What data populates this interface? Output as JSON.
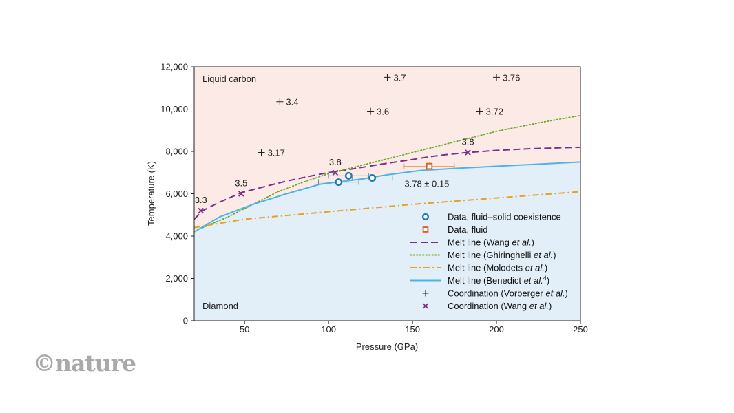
{
  "watermark": "©nature",
  "chart_data": {
    "type": "scatter",
    "title": "",
    "xlabel": "Pressure (GPa)",
    "ylabel": "Temperature (K)",
    "xlim": [
      20,
      250
    ],
    "ylim": [
      0,
      12000
    ],
    "xticks": [
      50,
      100,
      150,
      200,
      250
    ],
    "xtick_labels": [
      "50",
      "100",
      "150",
      "200",
      "250"
    ],
    "yticks": [
      0,
      2000,
      4000,
      6000,
      8000,
      10000,
      12000
    ],
    "ytick_labels": [
      "0",
      "2,000",
      "4,000",
      "6,000",
      "8,000",
      "10,000",
      "12,000"
    ],
    "grid": false,
    "legend_position": "lower-right",
    "regions": {
      "liquid_label": "Liquid carbon",
      "solid_label": "Diamond",
      "liquid_color": "#fbeae5",
      "solid_color": "#e3eff8"
    },
    "series": [
      {
        "name": "Data, fluid–solid coexistence",
        "kind": "points",
        "marker": "circle",
        "color": "#1f78b4",
        "points": [
          {
            "x": 106,
            "y": 6550,
            "xerr": 12,
            "yerr": 150
          },
          {
            "x": 112,
            "y": 6850,
            "xerr": 12,
            "yerr": 150
          },
          {
            "x": 126,
            "y": 6750,
            "xerr": 12,
            "yerr": 150
          }
        ]
      },
      {
        "name": "Data, fluid",
        "kind": "points",
        "marker": "square",
        "color": "#e05a1c",
        "points": [
          {
            "x": 160,
            "y": 7300,
            "xerr": 15,
            "yerr": 200
          }
        ]
      },
      {
        "name": "Melt line (Wang et al.)",
        "name_plain": "Melt line (Wang ",
        "name_italic": "et al.",
        "name_tail": ")",
        "kind": "line",
        "dash": "dashed",
        "color": "#7b2d8e",
        "x": [
          20,
          25,
          35,
          48,
          60,
          75,
          90,
          100,
          110,
          120,
          130,
          140,
          150,
          160,
          170,
          183,
          200,
          220,
          250
        ],
        "y": [
          4800,
          5200,
          5600,
          6050,
          6300,
          6600,
          6850,
          7000,
          7120,
          7250,
          7380,
          7500,
          7620,
          7750,
          7850,
          7950,
          8050,
          8130,
          8200
        ]
      },
      {
        "name": "Melt line (Ghiringhelli et al.)",
        "name_plain": "Melt line (Ghiringhelli ",
        "name_italic": "et al.",
        "name_tail": ")",
        "kind": "line",
        "dash": "dotted",
        "color": "#6aa820",
        "x": [
          25,
          40,
          55,
          70,
          85,
          100,
          120,
          140,
          160,
          180,
          200,
          225,
          250
        ],
        "y": [
          4400,
          4900,
          5500,
          6100,
          6550,
          6950,
          7350,
          7750,
          8150,
          8550,
          8950,
          9350,
          9700
        ]
      },
      {
        "name": "Melt line (Molodets et al.)",
        "name_plain": "Melt line (Molodets ",
        "name_italic": "et al.",
        "name_tail": ")",
        "kind": "line",
        "dash": "dashdot",
        "color": "#e8a020",
        "x": [
          20,
          50,
          100,
          150,
          200,
          250
        ],
        "y": [
          4400,
          4800,
          5150,
          5500,
          5800,
          6100
        ]
      },
      {
        "name": "Melt line (Benedict et al.4)",
        "name_plain": "Melt line (Benedict ",
        "name_italic": "et al.",
        "name_sup": "4",
        "name_tail": ")",
        "kind": "line",
        "dash": "solid",
        "color": "#4ab4e6",
        "x": [
          20,
          35,
          55,
          75,
          95,
          105,
          120,
          135,
          155,
          175,
          200,
          225,
          250
        ],
        "y": [
          4200,
          4900,
          5500,
          6000,
          6450,
          6550,
          6700,
          6900,
          7100,
          7200,
          7300,
          7400,
          7500
        ]
      },
      {
        "name": "Coordination (Vorberger et al.)",
        "name_plain": "Coordination (Vorberger ",
        "name_italic": "et al.",
        "name_tail": ")",
        "kind": "points",
        "marker": "plus",
        "color": "#222222",
        "points": [
          {
            "x": 60,
            "y": 7950,
            "label": "3.17"
          },
          {
            "x": 71,
            "y": 10350,
            "label": "3.4"
          },
          {
            "x": 125,
            "y": 9900,
            "label": "3.6"
          },
          {
            "x": 135,
            "y": 11500,
            "label": "3.7"
          },
          {
            "x": 190,
            "y": 9900,
            "label": "3.72"
          },
          {
            "x": 200,
            "y": 11500,
            "label": "3.76"
          }
        ]
      },
      {
        "name": "Coordination (Wang et al.)",
        "name_plain": "Coordination (Wang ",
        "name_italic": "et al.",
        "name_tail": ")",
        "kind": "points",
        "marker": "x",
        "color": "#7b2d8e",
        "points": [
          {
            "x": 24,
            "y": 5200,
            "label": "3.3"
          },
          {
            "x": 48,
            "y": 6000,
            "label": "3.5"
          },
          {
            "x": 104,
            "y": 7000,
            "label": "3.8"
          },
          {
            "x": 183,
            "y": 7950,
            "label": "3.8"
          }
        ]
      }
    ],
    "annotations": [
      {
        "text": "3.78 ± 0.15",
        "x": 137,
        "y": 6650
      }
    ]
  }
}
